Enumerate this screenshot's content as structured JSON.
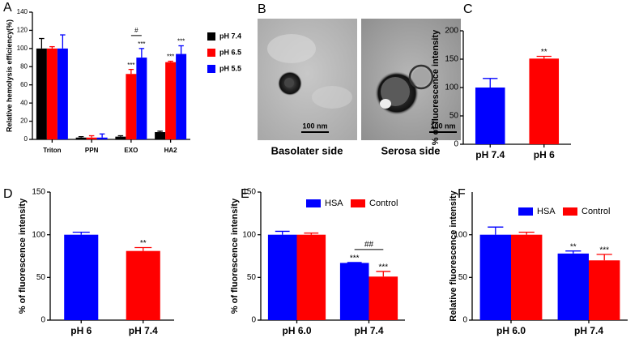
{
  "chart_data": [
    {
      "type": "bar",
      "label": "A",
      "ylabel": "Relative hemolysis efficiency(%)",
      "categories": [
        "Triton",
        "PPN",
        "EXO",
        "HA2"
      ],
      "series": [
        {
          "name": "pH 7.4",
          "color": "#000000",
          "values": [
            100,
            2,
            3,
            8
          ],
          "errors": [
            11,
            1,
            1,
            1
          ],
          "significance": [
            null,
            null,
            null,
            null
          ]
        },
        {
          "name": "pH 6.5",
          "color": "#ff0000",
          "values": [
            100,
            2,
            72,
            85
          ],
          "errors": [
            2,
            2,
            5,
            1
          ],
          "significance": [
            null,
            null,
            "***",
            "***"
          ]
        },
        {
          "name": "pH 5.5",
          "color": "#0000ff",
          "values": [
            100,
            2,
            90,
            94
          ],
          "errors": [
            15,
            4,
            10,
            9
          ],
          "significance": [
            null,
            null,
            "***",
            "***"
          ]
        }
      ],
      "brackets": [
        {
          "label": "#",
          "category": "EXO"
        }
      ],
      "ylim": [
        0,
        140
      ],
      "yticks": [
        0,
        20,
        40,
        60,
        80,
        100,
        120,
        140
      ],
      "legend": "right"
    },
    {
      "type": "bar",
      "label": "C",
      "ylabel": "% of fluorescence intensity",
      "categories": [
        "pH 7.4",
        "pH 6"
      ],
      "values": [
        100,
        151
      ],
      "errors": [
        16,
        4
      ],
      "colors": [
        "#0000ff",
        "#ff0000"
      ],
      "significance": [
        null,
        "**"
      ],
      "ylim": [
        0,
        200
      ],
      "yticks": [
        0,
        50,
        100,
        150,
        200
      ]
    },
    {
      "type": "bar",
      "label": "D",
      "ylabel": "% of fluorescence intensity",
      "categories": [
        "pH 6",
        "pH 7.4"
      ],
      "values": [
        100,
        81
      ],
      "errors": [
        3,
        4
      ],
      "colors": [
        "#0000ff",
        "#ff0000"
      ],
      "significance": [
        null,
        "**"
      ],
      "ylim": [
        0,
        150
      ],
      "yticks": [
        0,
        50,
        100,
        150
      ]
    },
    {
      "type": "bar",
      "label": "E",
      "ylabel": "% of fluorescence intensity",
      "categories": [
        "pH 6.0",
        "pH 7.4"
      ],
      "series": [
        {
          "name": "HSA",
          "color": "#0000ff",
          "values": [
            100,
            67
          ],
          "errors": [
            4,
            0.5
          ],
          "significance": [
            null,
            "***"
          ]
        },
        {
          "name": "Control",
          "color": "#ff0000",
          "values": [
            100,
            51
          ],
          "errors": [
            2,
            6
          ],
          "significance": [
            null,
            "***"
          ]
        }
      ],
      "brackets": [
        {
          "label": "##",
          "category": "pH 7.4"
        }
      ],
      "ylim": [
        0,
        150
      ],
      "yticks": [
        0,
        50,
        100,
        150
      ],
      "legend": "top"
    },
    {
      "type": "bar",
      "label": "F",
      "ylabel": "Relative fluorescence intensity",
      "categories": [
        "pH 6.0",
        "pH 7.4"
      ],
      "series": [
        {
          "name": "HSA",
          "color": "#0000ff",
          "values": [
            100,
            78
          ],
          "errors": [
            9,
            3
          ],
          "significance": [
            null,
            "**"
          ]
        },
        {
          "name": "Control",
          "color": "#ff0000",
          "values": [
            100,
            70
          ],
          "errors": [
            3,
            7
          ],
          "significance": [
            null,
            "***"
          ]
        }
      ],
      "ylim": [
        0,
        150
      ],
      "yticks": [
        0,
        50,
        100
      ],
      "legend": "top"
    }
  ],
  "image_panel": {
    "label": "B",
    "images": [
      {
        "caption": "Basolater side",
        "scale_bar": "100 nm"
      },
      {
        "caption": "Serosa side",
        "scale_bar": "100 nm"
      }
    ]
  }
}
